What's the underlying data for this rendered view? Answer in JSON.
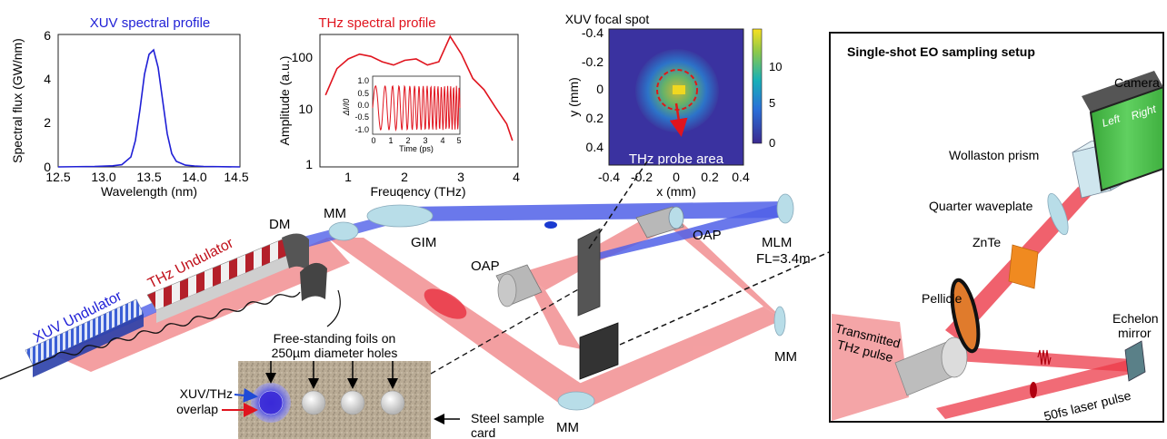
{
  "plots": {
    "xuv_spectrum": {
      "title": "XUV spectral profile",
      "ylabel": "Spectral flux (GW/nm)",
      "xlabel": "Wavelength (nm)",
      "xticks": [
        "12.5",
        "13.0",
        "13.5",
        "14.0",
        "14.5"
      ],
      "yticks": [
        "0",
        "2",
        "4",
        "6"
      ]
    },
    "thz_spectrum": {
      "title": "THz spectral profile",
      "ylabel": "Amplitude (a.u.)",
      "xlabel": "Freuqency (THz)",
      "xticks": [
        "1",
        "2",
        "3",
        "4"
      ],
      "yticks": [
        "1",
        "10",
        "100"
      ],
      "inset": {
        "ylabel": "ΔI/I0",
        "xlabel": "Time (ps)",
        "xticks": [
          "0",
          "1",
          "2",
          "3",
          "4",
          "5"
        ],
        "yticks": [
          "1.0",
          "0.5",
          "0.0",
          "-0.5",
          "-1.0"
        ]
      }
    },
    "xuv_focal_spot": {
      "title": "XUV focal spot",
      "ylabel": "y (mm)",
      "xlabel": "x (mm)",
      "xticks": [
        "-0.4",
        "-0.2",
        "0",
        "0.2",
        "0.4"
      ],
      "yticks": [
        "-0.4",
        "-0.2",
        "0",
        "0.2",
        "0.4"
      ],
      "colorbar_ticks": [
        "10",
        "5",
        "0"
      ],
      "annotation": "THz probe area"
    }
  },
  "chart_data": [
    {
      "type": "line",
      "title": "XUV spectral profile",
      "xlabel": "Wavelength (nm)",
      "ylabel": "Spectral flux (GW/nm)",
      "xlim": [
        12.5,
        14.5
      ],
      "ylim": [
        0,
        6
      ],
      "series": [
        {
          "x": [
            12.5,
            12.9,
            13.1,
            13.2,
            13.3,
            13.35,
            13.4,
            13.45,
            13.5,
            13.55,
            13.6,
            13.65,
            13.7,
            13.75,
            13.8,
            13.9,
            14.0,
            14.1,
            14.5
          ],
          "values": [
            0,
            0.02,
            0.05,
            0.1,
            0.45,
            1.2,
            2.6,
            4.2,
            5.1,
            5.3,
            4.5,
            3.0,
            1.5,
            0.6,
            0.25,
            0.08,
            0.04,
            0.02,
            0
          ],
          "color": "#1f1fd6"
        }
      ]
    },
    {
      "type": "line",
      "title": "THz spectral profile",
      "xlabel": "Freuqency (THz)",
      "ylabel": "Amplitude (a.u.)",
      "xlim": [
        0.5,
        4
      ],
      "ylim": [
        1,
        250
      ],
      "yscale": "log",
      "series": [
        {
          "x": [
            0.6,
            0.8,
            1.0,
            1.2,
            1.4,
            1.6,
            1.8,
            2.0,
            2.2,
            2.4,
            2.6,
            2.8,
            3.0,
            3.2,
            3.4,
            3.6,
            3.8,
            3.9
          ],
          "values": [
            20,
            60,
            90,
            110,
            100,
            80,
            70,
            85,
            90,
            70,
            80,
            230,
            110,
            40,
            25,
            12,
            6,
            3
          ],
          "color": "#e0141e"
        }
      ]
    },
    {
      "type": "heatmap",
      "title": "XUV focal spot",
      "xlabel": "x (mm)",
      "ylabel": "y (mm)",
      "xlim": [
        -0.4,
        0.4
      ],
      "ylim": [
        -0.4,
        0.4
      ],
      "color_range": [
        0,
        14
      ]
    }
  ],
  "labels": {
    "dm": "DM",
    "mm_top": "MM",
    "gim": "GIM",
    "mlm": "MLM",
    "mlm_fl": "FL=3.4m",
    "oap_right": "OAP",
    "oap_left": "OAP",
    "mm_right": "MM",
    "mm_bottom": "MM",
    "thz_undulator": "THz Undulator",
    "xuv_undulator": "XUV Undulator",
    "foils_line1": "Free-standing foils on",
    "foils_line2": "250µm diameter holes",
    "overlap_line1": "XUV/THz",
    "overlap_line2": "overlap",
    "steel_line1": "Steel sample",
    "steel_line2": "card"
  },
  "eo_setup": {
    "title": "Single-shot EO sampling setup",
    "camera": "Camera",
    "camera_left": "Left",
    "camera_right": "Right",
    "wollaston": "Wollaston prism",
    "quarter": "Quarter waveplate",
    "znte": "ZnTe",
    "pellicle": "Pellicle",
    "transmitted_line1": "Transmitted",
    "transmitted_line2": "THz pulse",
    "echelon_line1": "Echelon",
    "echelon_line2": "mirror",
    "laser": "50fs laser pulse"
  },
  "colors": {
    "xuv": "#1f1fd6",
    "thz": "#e0141e",
    "thz_beam": "#f07f82",
    "xuv_beam": "#5060e8",
    "optics": "#b8dde8"
  }
}
